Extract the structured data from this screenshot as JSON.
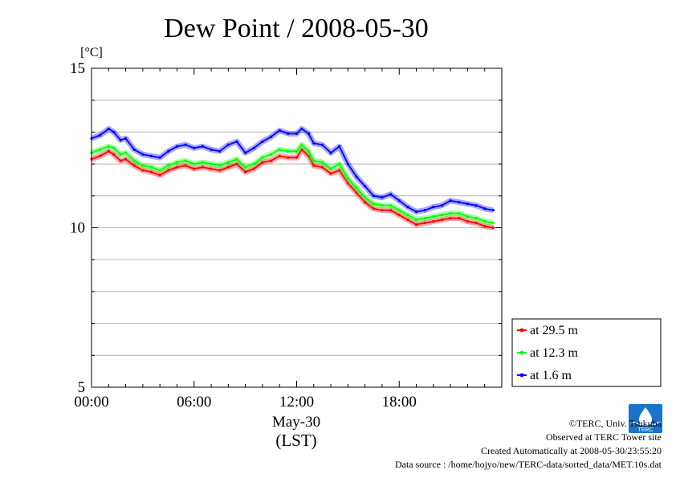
{
  "chart_data": {
    "type": "line",
    "title": "Dew Point / 2008-05-30",
    "ylabel": "[°C]",
    "ylim": [
      5,
      15
    ],
    "y_ticks": [
      "5",
      "10",
      "15"
    ],
    "y_tick_values": [
      5,
      10,
      15
    ],
    "xlim_hours": [
      0,
      24
    ],
    "x_ticks": [
      "00:00",
      "06:00",
      "12:00",
      "18:00"
    ],
    "x_tick_hours": [
      0,
      6,
      12,
      18
    ],
    "date_label": "May-30",
    "tz_label": "(LST)",
    "grid": "horizontal",
    "legend_position": "bottom-right",
    "series": [
      {
        "name": "at 29.5 m",
        "color": "#ff0000",
        "x": [
          0,
          0.5,
          1,
          1.3,
          1.7,
          2,
          2.5,
          3,
          3.5,
          4,
          4.5,
          5,
          5.5,
          6,
          6.5,
          7,
          7.5,
          8,
          8.5,
          9,
          9.5,
          10,
          10.5,
          11,
          11.5,
          12,
          12.3,
          12.7,
          13,
          13.5,
          14,
          14.5,
          15,
          15.5,
          16,
          16.5,
          17,
          17.5,
          18,
          18.5,
          19,
          19.5,
          20,
          20.5,
          21,
          21.5,
          22,
          22.5,
          23,
          23.5
        ],
        "values": [
          12.15,
          12.25,
          12.4,
          12.3,
          12.1,
          12.15,
          11.95,
          11.8,
          11.75,
          11.65,
          11.8,
          11.9,
          11.95,
          11.85,
          11.9,
          11.85,
          11.8,
          11.9,
          12.0,
          11.75,
          11.85,
          12.05,
          12.1,
          12.25,
          12.2,
          12.2,
          12.45,
          12.25,
          11.95,
          11.9,
          11.7,
          11.8,
          11.4,
          11.1,
          10.8,
          10.6,
          10.55,
          10.55,
          10.4,
          10.25,
          10.1,
          10.15,
          10.2,
          10.25,
          10.3,
          10.3,
          10.2,
          10.15,
          10.05,
          10.0
        ]
      },
      {
        "name": "at 12.3 m",
        "color": "#00ff00",
        "x": [
          0,
          0.5,
          1,
          1.3,
          1.7,
          2,
          2.5,
          3,
          3.5,
          4,
          4.5,
          5,
          5.5,
          6,
          6.5,
          7,
          7.5,
          8,
          8.5,
          9,
          9.5,
          10,
          10.5,
          11,
          11.5,
          12,
          12.3,
          12.7,
          13,
          13.5,
          14,
          14.5,
          15,
          15.5,
          16,
          16.5,
          17,
          17.5,
          18,
          18.5,
          19,
          19.5,
          20,
          20.5,
          21,
          21.5,
          22,
          22.5,
          23,
          23.5
        ],
        "values": [
          12.35,
          12.45,
          12.55,
          12.5,
          12.3,
          12.35,
          12.1,
          11.95,
          11.9,
          11.8,
          11.95,
          12.05,
          12.1,
          12.0,
          12.05,
          12.0,
          11.95,
          12.05,
          12.15,
          11.9,
          12.0,
          12.2,
          12.3,
          12.45,
          12.4,
          12.4,
          12.6,
          12.4,
          12.1,
          12.05,
          11.85,
          12.0,
          11.55,
          11.25,
          10.95,
          10.75,
          10.7,
          10.7,
          10.55,
          10.4,
          10.25,
          10.3,
          10.35,
          10.4,
          10.45,
          10.45,
          10.35,
          10.3,
          10.2,
          10.15
        ]
      },
      {
        "name": "at 1.6 m",
        "color": "#0000ff",
        "x": [
          0,
          0.5,
          1,
          1.3,
          1.7,
          2,
          2.5,
          3,
          3.5,
          4,
          4.5,
          5,
          5.5,
          6,
          6.5,
          7,
          7.5,
          8,
          8.5,
          9,
          9.5,
          10,
          10.5,
          11,
          11.5,
          12,
          12.3,
          12.7,
          13,
          13.5,
          14,
          14.5,
          15,
          15.5,
          16,
          16.5,
          17,
          17.5,
          18,
          18.5,
          19,
          19.5,
          20,
          20.5,
          21,
          21.5,
          22,
          22.5,
          23,
          23.5
        ],
        "values": [
          12.8,
          12.9,
          13.1,
          13.0,
          12.75,
          12.8,
          12.45,
          12.3,
          12.25,
          12.2,
          12.4,
          12.55,
          12.6,
          12.5,
          12.55,
          12.45,
          12.4,
          12.6,
          12.7,
          12.35,
          12.5,
          12.7,
          12.85,
          13.05,
          12.95,
          12.95,
          13.1,
          12.95,
          12.65,
          12.6,
          12.35,
          12.55,
          12.0,
          11.6,
          11.3,
          11.0,
          10.95,
          11.05,
          10.85,
          10.65,
          10.5,
          10.55,
          10.65,
          10.7,
          10.85,
          10.8,
          10.75,
          10.7,
          10.6,
          10.55
        ]
      }
    ]
  },
  "footer": {
    "copyright": "©TERC, Univ. Tsukuba",
    "observed": "Observed at TERC Tower site",
    "created": "Created Automatically at 2008-05-30/23:55:20",
    "source": "Data source : /home/hojyo/new/TERC-data/sorted_data/MET.10s.dat"
  },
  "logo": {
    "icon": "terc-logo-icon",
    "text": "TERC",
    "color": "#1a74c9"
  }
}
